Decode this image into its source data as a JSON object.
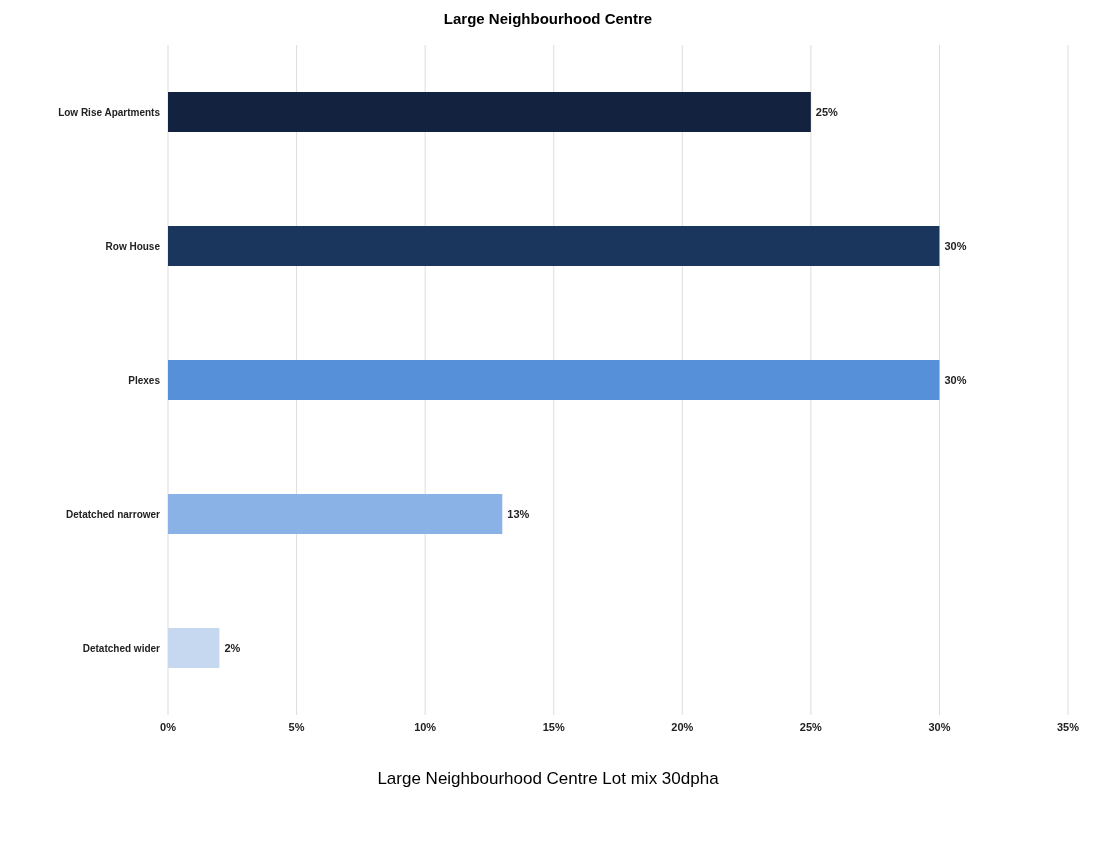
{
  "chart_data": {
    "type": "bar",
    "orientation": "horizontal",
    "title": "Large Neighbourhood Centre",
    "categories": [
      "Low Rise Apartments",
      "Row House",
      "Plexes",
      "Detatched narrower",
      "Detatched wider"
    ],
    "values": [
      25,
      30,
      30,
      13,
      2
    ],
    "colors": [
      "#13233f",
      "#1a365d",
      "#5590d8",
      "#8ab2e6",
      "#c5d8f0"
    ],
    "value_labels": [
      "25%",
      "30%",
      "30%",
      "13%",
      "2%"
    ],
    "xlim": [
      0,
      35
    ],
    "xticks": [
      {
        "value": 0,
        "label": "0%"
      },
      {
        "value": 5,
        "label": "5%"
      },
      {
        "value": 10,
        "label": "10%"
      },
      {
        "value": 15,
        "label": "15%"
      },
      {
        "value": 20,
        "label": "20%"
      },
      {
        "value": 25,
        "label": "25%"
      },
      {
        "value": 30,
        "label": "30%"
      },
      {
        "value": 35,
        "label": "35%"
      }
    ],
    "grid": "x",
    "annotations": [
      "Large Neighbourhood Centre Lot mix 30dpha"
    ]
  }
}
